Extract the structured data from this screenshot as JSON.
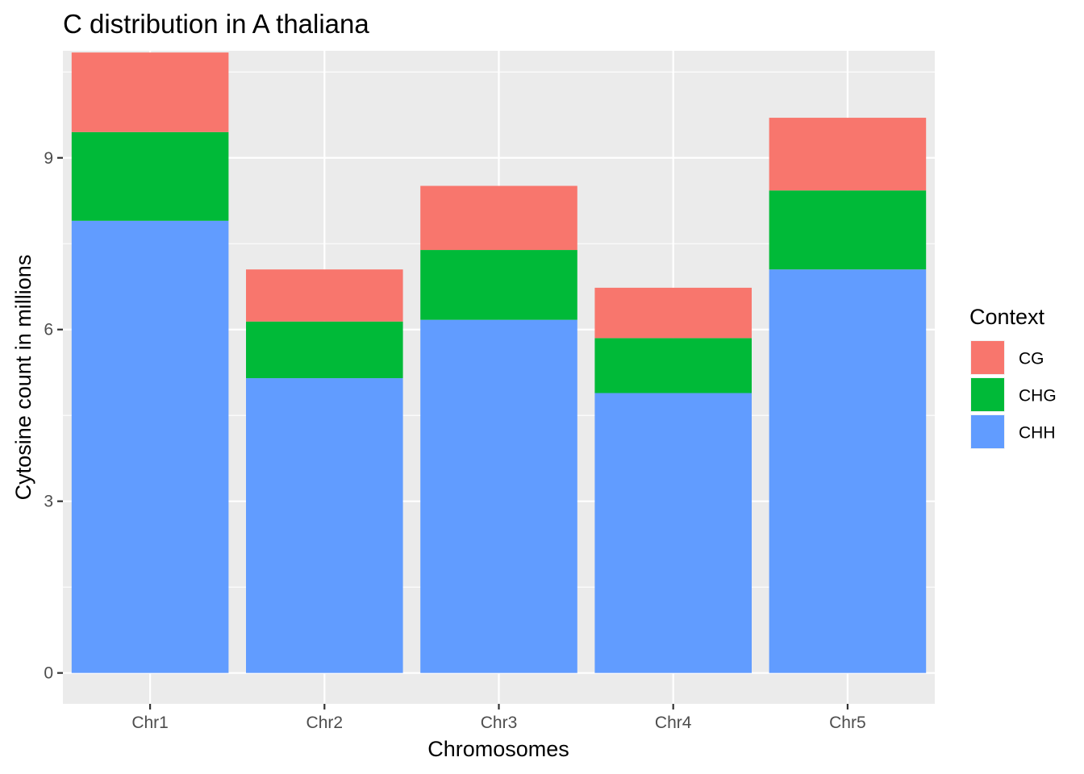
{
  "chart_data": {
    "type": "bar",
    "stacked": true,
    "title": "C distribution in A thaliana",
    "xlabel": "Chromosomes",
    "ylabel": "Cytosine count in millions",
    "categories": [
      "Chr1",
      "Chr2",
      "Chr3",
      "Chr4",
      "Chr5"
    ],
    "series": [
      {
        "name": "CHH",
        "color": "#619CFF",
        "values": [
          7.9,
          5.15,
          6.17,
          4.89,
          7.05
        ]
      },
      {
        "name": "CHG",
        "color": "#00BA38",
        "values": [
          1.55,
          0.99,
          1.22,
          0.96,
          1.38
        ]
      },
      {
        "name": "CG",
        "color": "#F8766D",
        "values": [
          1.39,
          0.91,
          1.12,
          0.88,
          1.27
        ]
      }
    ],
    "ylim": [
      -0.54,
      10.87
    ],
    "yticks": [
      0,
      3,
      6,
      9
    ],
    "grid": true,
    "legend": {
      "title": "Context",
      "position": "right",
      "order": [
        "CG",
        "CHG",
        "CHH"
      ]
    },
    "panel_background": "#EBEBEB"
  }
}
